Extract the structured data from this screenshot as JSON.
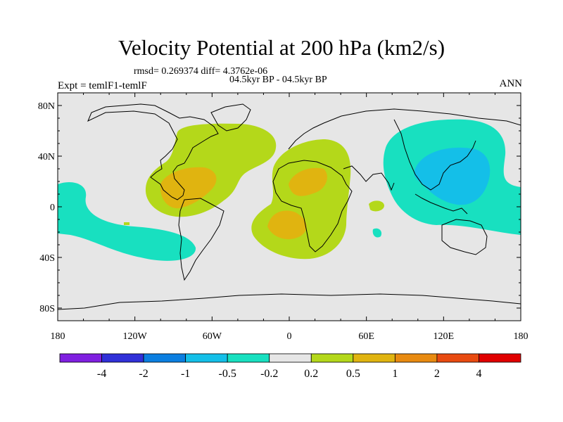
{
  "title": "Velocity Potential at 200 hPa (km2/s)",
  "stats": "rmsd= 0.269374 diff= 4.3762e-06",
  "period": "04.5kyr BP - 04.5kyr BP",
  "experiment": "Expt = temlF1-temlF",
  "season": "ANN",
  "map": {
    "projection": "cylindrical equidistant",
    "lon_range": [
      -180,
      180
    ],
    "lat_range": [
      -90,
      90
    ],
    "lat_ticks": [
      {
        "value": 80,
        "label": "80N"
      },
      {
        "value": 40,
        "label": "40N"
      },
      {
        "value": 0,
        "label": "0"
      },
      {
        "value": -40,
        "label": "40S"
      },
      {
        "value": -80,
        "label": "80S"
      }
    ],
    "lon_ticks": [
      {
        "value": -180,
        "label": "180"
      },
      {
        "value": -120,
        "label": "120W"
      },
      {
        "value": -60,
        "label": "60W"
      },
      {
        "value": 0,
        "label": "0"
      },
      {
        "value": 60,
        "label": "60E"
      },
      {
        "value": 120,
        "label": "120E"
      },
      {
        "value": 180,
        "label": "180"
      }
    ]
  },
  "colorbar": {
    "colors": [
      "#7f1fe0",
      "#3030d8",
      "#0b7ee0",
      "#14bfe8",
      "#18e0c0",
      "#e6e6e6",
      "#b4d81a",
      "#e0b410",
      "#e88a10",
      "#e84a10",
      "#e00000"
    ],
    "labels": [
      "-4",
      "-2",
      "-1",
      "-0.5",
      "-0.2",
      "0.2",
      "0.5",
      "1",
      "2",
      "4"
    ]
  },
  "colors": {
    "background": "#e6e6e6",
    "positive_low": "#b4d81a",
    "positive_mid": "#e0b410",
    "positive_high": "#e88a10",
    "negative_low": "#18e0c0",
    "negative_mid": "#14bfe8"
  }
}
